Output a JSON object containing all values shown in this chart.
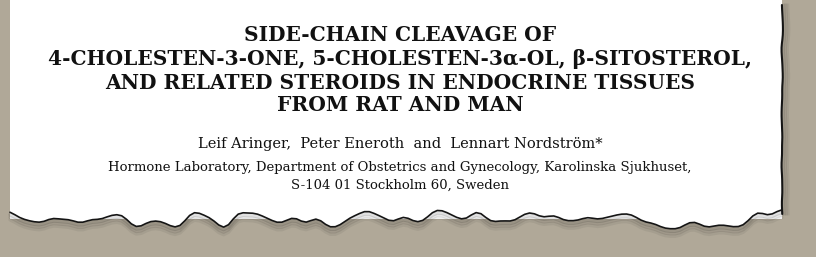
{
  "title_lines": [
    "SIDE-CHAIN CLEAVAGE OF",
    "4-CHOLESTEN-3-ONE, 5-CHOLESTEN-3α-OL, β-SITOSTEROL,",
    "AND RELATED STEROIDS IN ENDOCRINE TISSUES",
    "FROM RAT AND MAN"
  ],
  "author_caps_parts": [
    {
      "big": "L",
      "small": "EIF"
    },
    {
      "big": "A",
      "small": "RINGER"
    },
    {
      "big": "P",
      "small": "ETER"
    },
    {
      "big": "E",
      "small": "NEROTH"
    },
    {
      "big": "L",
      "small": "ENNART"
    },
    {
      "big": "N",
      "small": "ORDSTRÖM"
    }
  ],
  "author_connectors": [
    ", ",
    " and "
  ],
  "institution_lines": [
    "Hormone Laboratory, Department of Obstetrics and Gynecology, Karolinska Sjukhuset,",
    "S-104 01 Stockholm 60, Sweden"
  ],
  "outer_bg": "#b0a898",
  "paper_bg": "#ffffff",
  "text_color": "#111111",
  "title_fontsize": 14.5,
  "author_big_fontsize": 11.5,
  "author_small_fontsize": 8.5,
  "institution_fontsize": 9.5
}
